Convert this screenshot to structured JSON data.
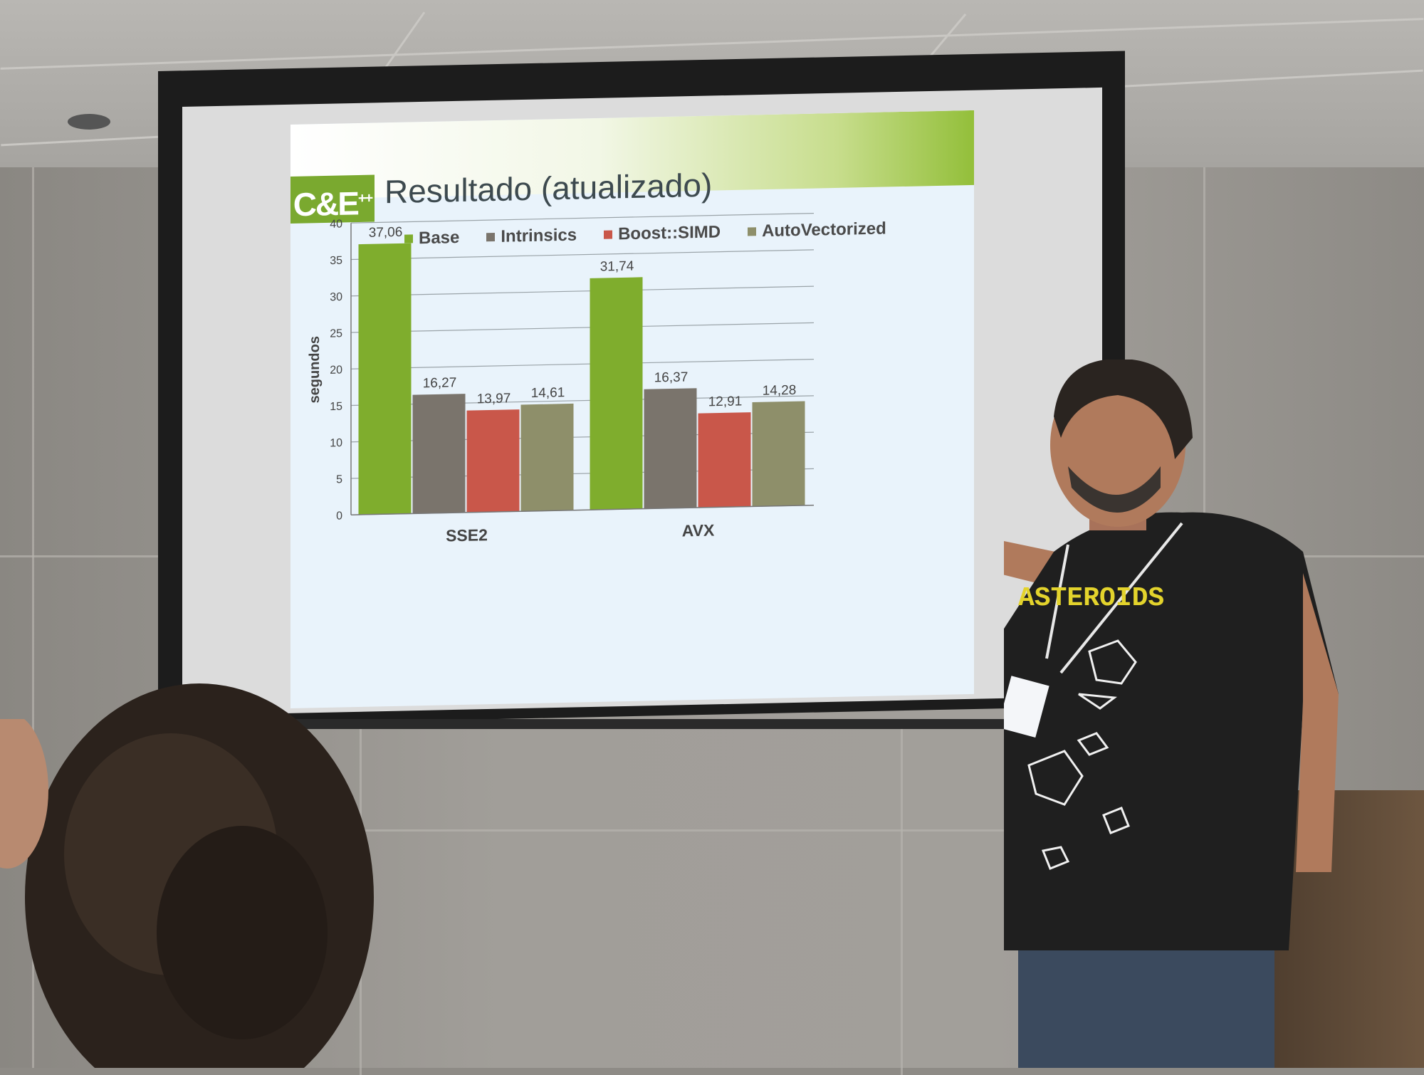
{
  "slide": {
    "logo_text": "C&E",
    "logo_sup": "++",
    "title": "Resultado (atualizado)"
  },
  "chart_data": {
    "type": "bar",
    "title": "",
    "ylabel": "segundos",
    "xlabel": "",
    "ylim": [
      0,
      40
    ],
    "yticks": [
      0,
      5,
      10,
      15,
      20,
      25,
      30,
      35,
      40
    ],
    "categories": [
      "SSE2",
      "AVX"
    ],
    "series": [
      {
        "name": "Base",
        "values": [
          37.06,
          31.74
        ],
        "labels": [
          "37,06",
          "31,74"
        ],
        "color": "#7fad2d"
      },
      {
        "name": "Intrinsics",
        "values": [
          16.27,
          16.37
        ],
        "labels": [
          "16,27",
          "16,37"
        ],
        "color": "#7a746c"
      },
      {
        "name": "Boost::SIMD",
        "values": [
          13.97,
          12.91
        ],
        "labels": [
          "13,97",
          "12,91"
        ],
        "color": "#c9574a"
      },
      {
        "name": "AutoVectorized",
        "values": [
          14.61,
          14.28
        ],
        "labels": [
          "14,61",
          "14,28"
        ],
        "color": "#8e8f6a"
      }
    ],
    "grid": true,
    "legend_position": "top"
  },
  "shirt_text": "ASTEROIDS"
}
